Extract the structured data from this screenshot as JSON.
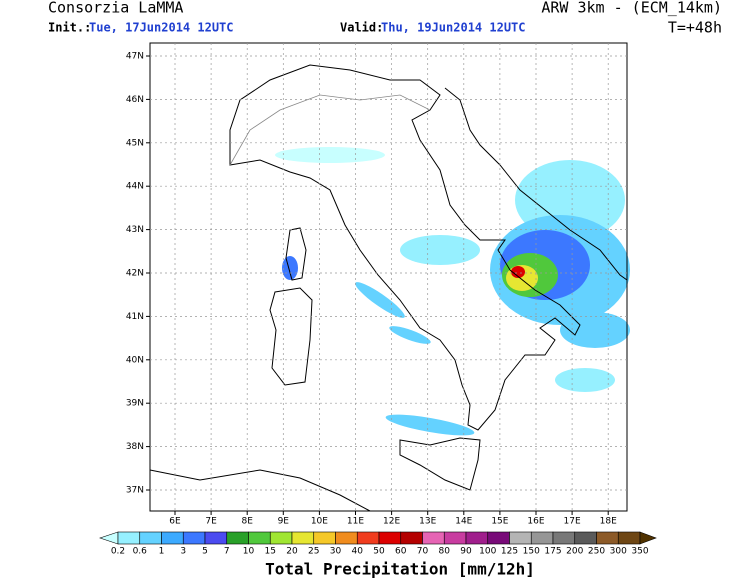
{
  "header": {
    "title": "Consorzia LaMMA",
    "model": "ARW 3km - (ECM_14km)",
    "init_label": "Init.:",
    "init": "Tue, 17Jun2014 12UTC",
    "valid_label": "Valid:",
    "valid": "Thu, 19Jun2014 12UTC",
    "lead": "T=+48h"
  },
  "map": {
    "lat_labels": [
      "47N",
      "46N",
      "45N",
      "44N",
      "43N",
      "42N",
      "41N",
      "40N",
      "39N",
      "38N",
      "37N"
    ],
    "lon_labels": [
      "6E",
      "7E",
      "8E",
      "9E",
      "10E",
      "11E",
      "12E",
      "13E",
      "14E",
      "15E",
      "16E",
      "17E",
      "18E"
    ]
  },
  "colorbar": {
    "title": "Total Precipitation [mm/12h]",
    "labels": [
      "0.2",
      "0.6",
      "1",
      "3",
      "5",
      "7",
      "10",
      "15",
      "20",
      "25",
      "30",
      "40",
      "50",
      "60",
      "70",
      "80",
      "90",
      "100",
      "125",
      "150",
      "175",
      "200",
      "250",
      "300",
      "350"
    ],
    "colors": [
      "#c8ffff",
      "#96f0ff",
      "#64d2ff",
      "#3caaff",
      "#3c78ff",
      "#4b4bf0",
      "#28a028",
      "#50c83c",
      "#a0e632",
      "#e6e632",
      "#f5c828",
      "#f08c1e",
      "#f03c1e",
      "#dc0000",
      "#b40000",
      "#e664b4",
      "#c83ca0",
      "#a01e8c",
      "#780a78",
      "#b4b4b4",
      "#969696",
      "#787878",
      "#5a5a5a",
      "#8c5a28",
      "#6e4614",
      "#503200"
    ]
  }
}
